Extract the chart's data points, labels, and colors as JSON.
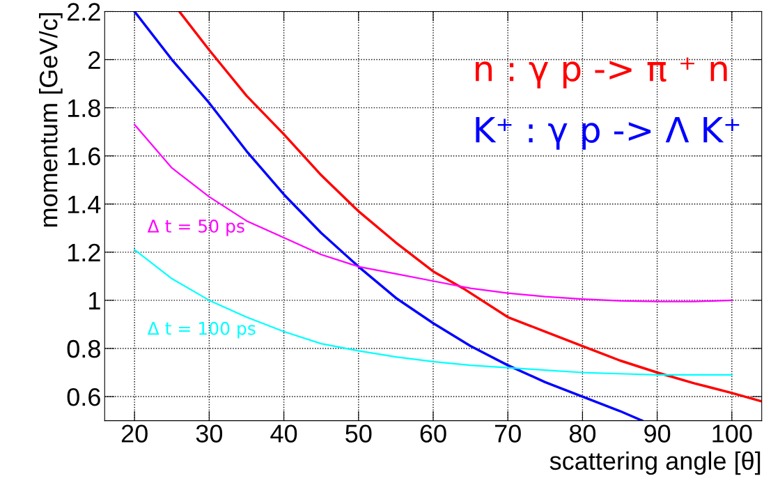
{
  "chart_data": {
    "type": "line",
    "xlabel": "scattering angle [θ]",
    "ylabel": "momentum [GeV/c]",
    "xlim": [
      16,
      104
    ],
    "ylim": [
      0.5,
      2.2
    ],
    "xticks": [
      20,
      30,
      40,
      50,
      60,
      70,
      80,
      90,
      100
    ],
    "yticks": [
      0.6,
      0.8,
      1,
      1.2,
      1.4,
      1.6,
      1.8,
      2,
      2.2
    ],
    "grid": true,
    "legend": false,
    "marker": "none",
    "line_style": "solid",
    "series": [
      {
        "name": "n : γ p -> π ⁺ n",
        "color": "#ff0000",
        "x": [
          26,
          30,
          35,
          40,
          45,
          50,
          55,
          60,
          64,
          70,
          75,
          80,
          85,
          90,
          95,
          100,
          104
        ],
        "values": [
          2.2,
          2.04,
          1.85,
          1.69,
          1.52,
          1.37,
          1.24,
          1.12,
          1.05,
          0.93,
          0.87,
          0.81,
          0.75,
          0.7,
          0.655,
          0.615,
          0.58
        ]
      },
      {
        "name": "K⁺ : γ p -> Λ K⁺",
        "color": "#0000ff",
        "x": [
          20,
          25,
          30,
          35,
          40,
          45,
          50,
          55,
          60,
          65,
          70,
          75,
          80,
          85,
          88
        ],
        "values": [
          2.2,
          2,
          1.82,
          1.62,
          1.44,
          1.28,
          1.14,
          1.01,
          0.905,
          0.81,
          0.73,
          0.66,
          0.6,
          0.54,
          0.5
        ]
      },
      {
        "name": "Δ t = 50 ps",
        "color": "#ff00ff",
        "x": [
          20,
          25,
          30,
          35,
          40,
          45,
          50,
          55,
          60,
          65,
          70,
          75,
          80,
          85,
          90,
          95,
          100
        ],
        "values": [
          1.73,
          1.55,
          1.43,
          1.33,
          1.26,
          1.19,
          1.14,
          1.11,
          1.08,
          1.05,
          1.03,
          1.015,
          1.005,
          0.998,
          0.995,
          0.995,
          1.0
        ]
      },
      {
        "name": "Δ t = 100 ps",
        "color": "#00ffff",
        "x": [
          20,
          25,
          30,
          35,
          40,
          45,
          50,
          55,
          60,
          65,
          70,
          75,
          80,
          85,
          90,
          95,
          100
        ],
        "values": [
          1.21,
          1.09,
          1.0,
          0.93,
          0.87,
          0.82,
          0.79,
          0.765,
          0.745,
          0.73,
          0.72,
          0.71,
          0.7,
          0.695,
          0.69,
          0.69,
          0.69
        ]
      }
    ]
  }
}
